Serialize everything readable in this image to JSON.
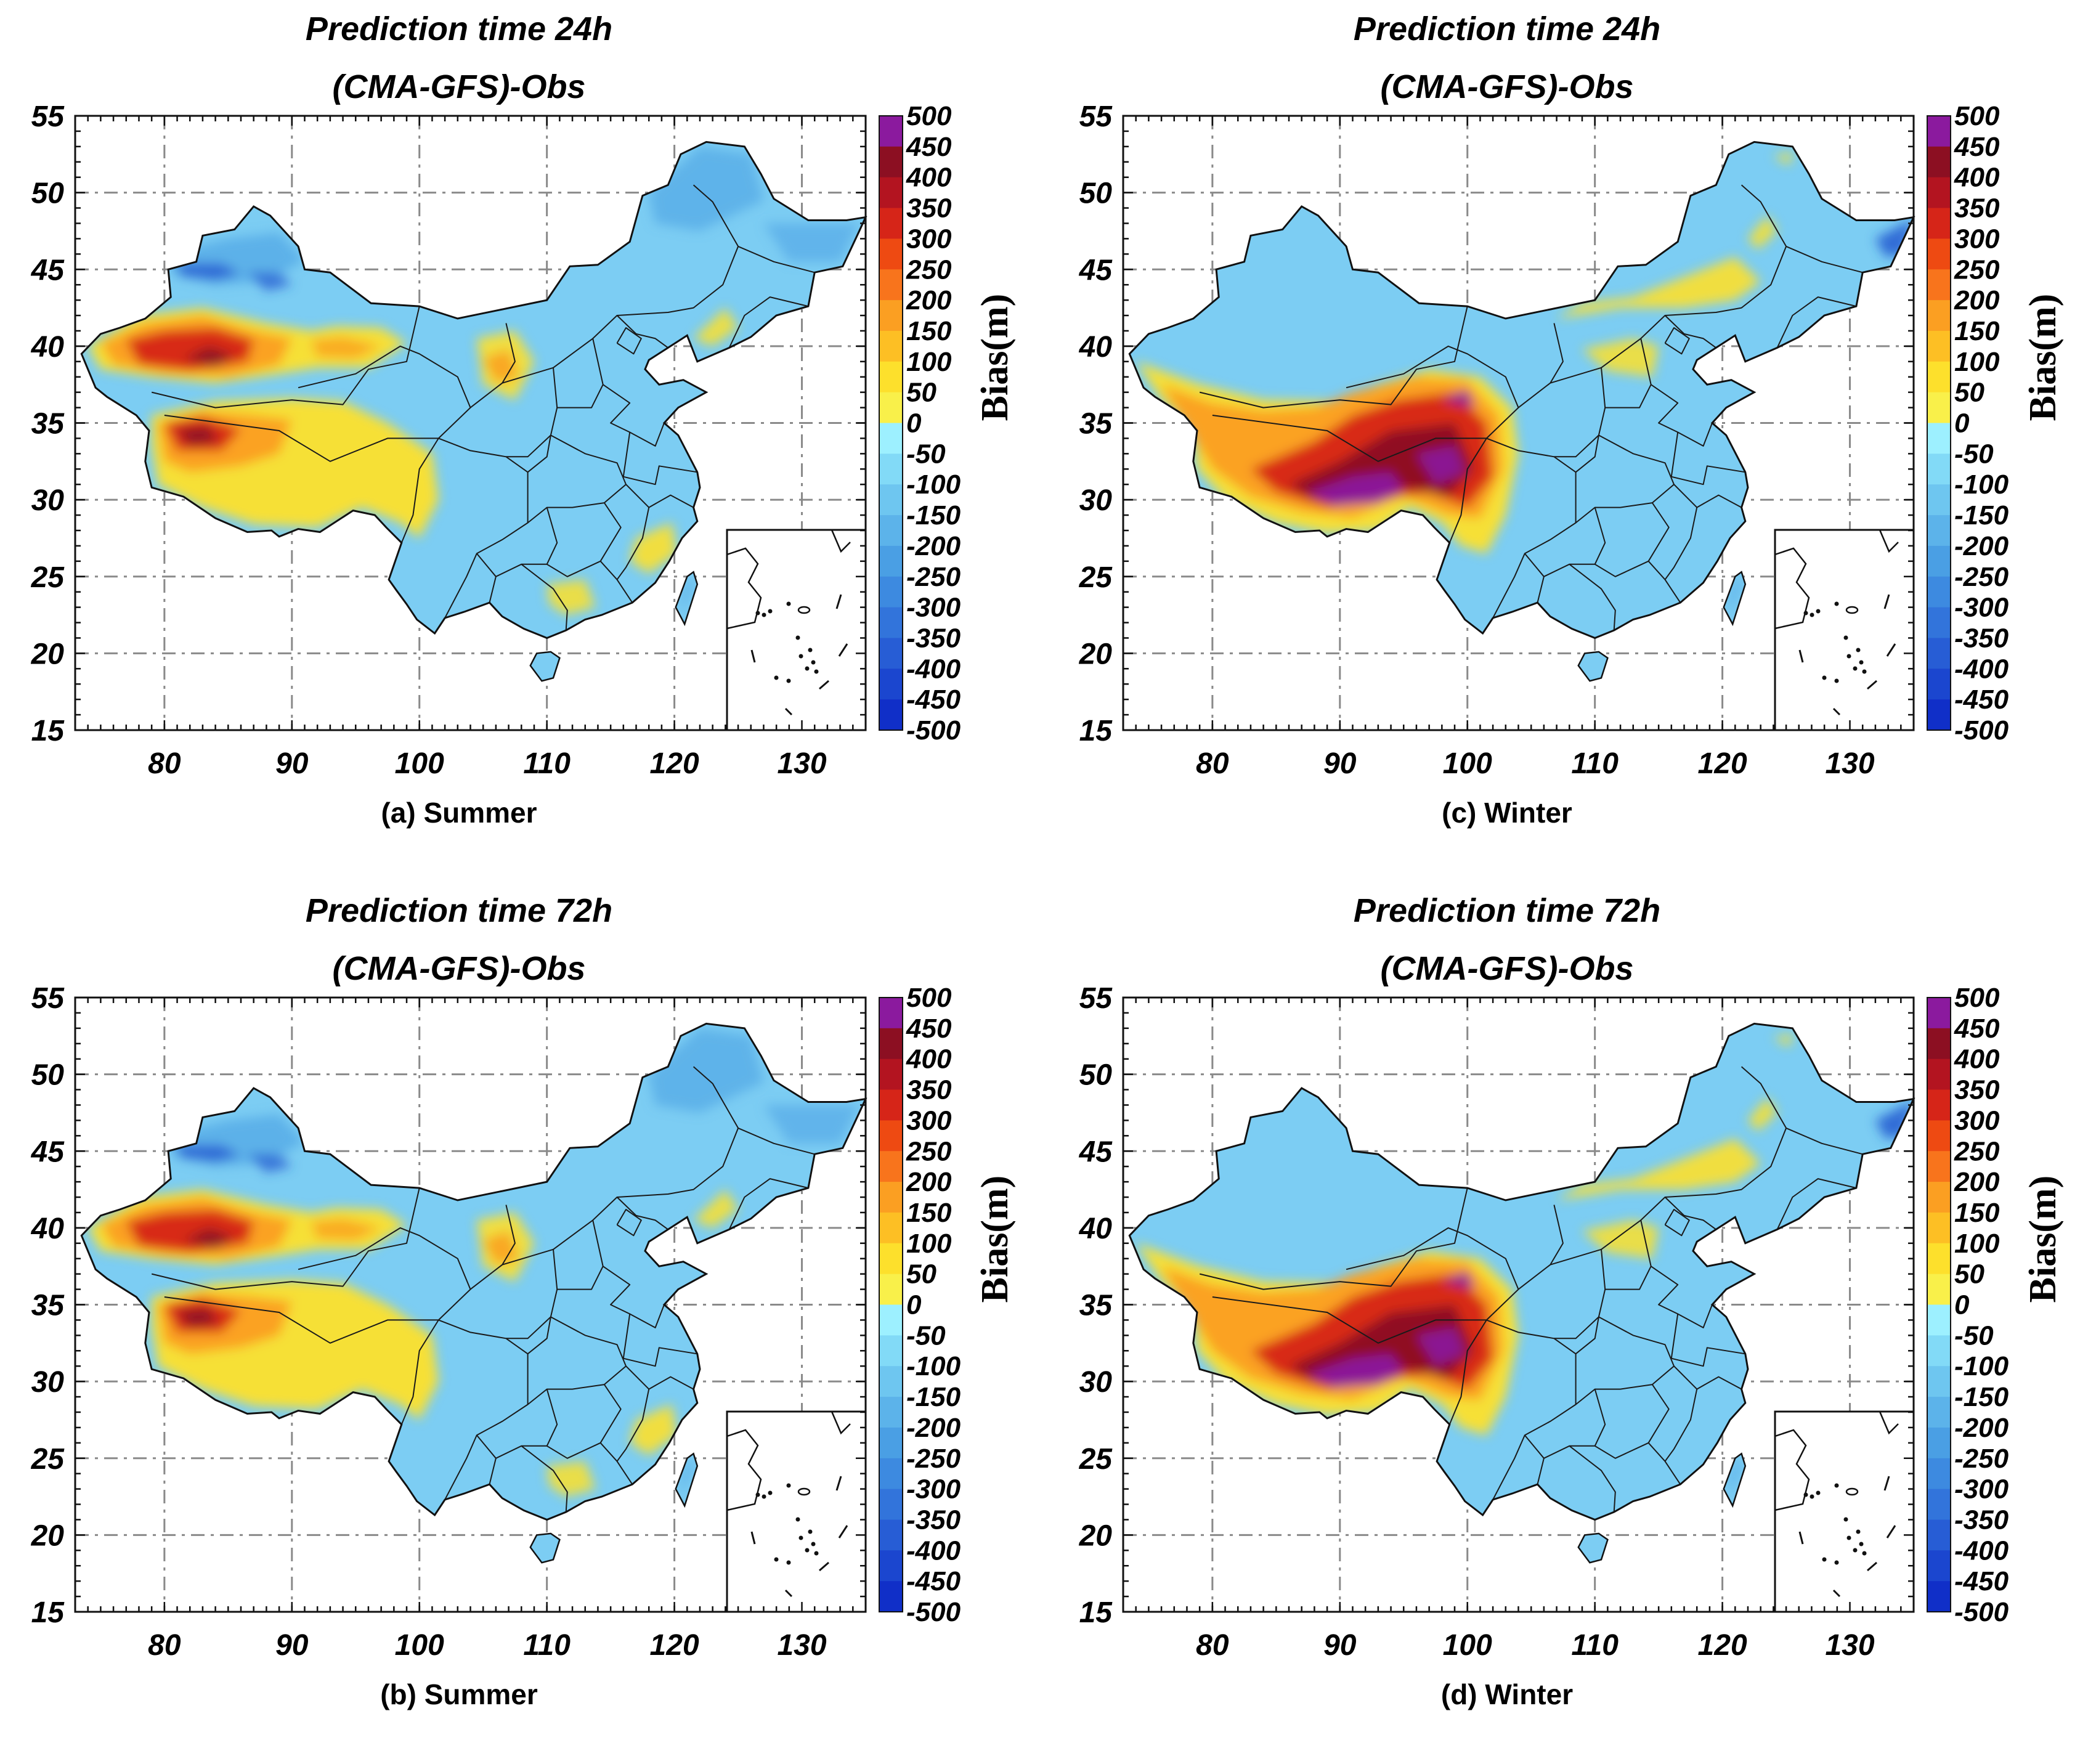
{
  "colorbar": {
    "label": "Bias(m)",
    "ticks": [
      "500",
      "450",
      "400",
      "350",
      "300",
      "250",
      "200",
      "150",
      "100",
      "50",
      "0",
      "-50",
      "-100",
      "-150",
      "-200",
      "-250",
      "-300",
      "-350",
      "-400",
      "-450",
      "-500"
    ],
    "colors": [
      "#8b1a9e",
      "#8c0f22",
      "#b31420",
      "#d62518",
      "#ee4a12",
      "#f8741c",
      "#fb9f22",
      "#fdbf24",
      "#fde02c",
      "#f9f04a",
      "#9df0ff",
      "#82daf7",
      "#6ec6f0",
      "#5cb3ea",
      "#4a9fe4",
      "#3d8ae0",
      "#3274db",
      "#275dd5",
      "#1b46cf",
      "#102fc8"
    ]
  },
  "axes": {
    "y_ticks": [
      "55",
      "50",
      "45",
      "40",
      "35",
      "30",
      "25",
      "20",
      "15"
    ],
    "x_ticks": [
      "80",
      "90",
      "100",
      "110",
      "120",
      "130"
    ]
  },
  "palette": {
    "base_blue": "#7ccdf3",
    "mid_blue": "#5aaee8",
    "deep_blue": "#2a63d3",
    "yellow": "#fde02c",
    "orange": "#fb9f22",
    "red": "#d62518",
    "darkred": "#8c0f22",
    "purple": "#8b1a9e"
  },
  "panels": [
    {
      "id": "a",
      "season": "summer",
      "title1": "Prediction time 24h",
      "title2": "(CMA-GFS)-Obs",
      "caption": "(a) Summer"
    },
    {
      "id": "c",
      "season": "winter",
      "title1": "Prediction time 24h",
      "title2": "(CMA-GFS)-Obs",
      "caption": "(c) Winter"
    },
    {
      "id": "b",
      "season": "summer",
      "title1": "Prediction time 72h",
      "title2": "(CMA-GFS)-Obs",
      "caption": "(b) Summer"
    },
    {
      "id": "d",
      "season": "winter",
      "title1": "Prediction time 72h",
      "title2": "(CMA-GFS)-Obs",
      "caption": "(d) Winter"
    }
  ]
}
